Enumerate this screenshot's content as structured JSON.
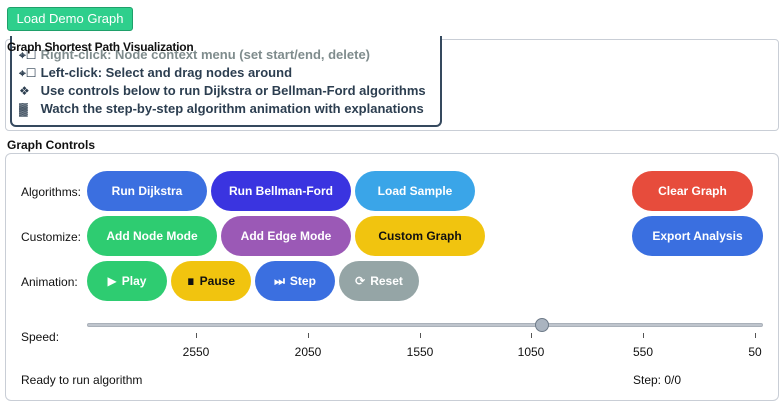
{
  "top": {
    "demo_button": "Load Demo Graph"
  },
  "visualization": {
    "title": "Graph Shortest Path Visualization",
    "instructions": [
      {
        "icon": "mouse-icon",
        "glyph": "⌖☐",
        "text": "Right-click: Node context menu (set start/end, delete)"
      },
      {
        "icon": "mouse-icon",
        "glyph": "⌖☐",
        "text": "Left-click: Select and drag nodes around"
      },
      {
        "icon": "gamepad-icon",
        "glyph": "❖",
        "text": "Use controls below to run Dijkstra or Bellman-Ford algorithms"
      },
      {
        "icon": "chart-icon",
        "glyph": "▓",
        "text": "Watch the step-by-step algorithm animation with explanations"
      }
    ]
  },
  "controls": {
    "title": "Graph Controls",
    "labels": {
      "algorithms": "Algorithms:",
      "customize": "Customize:",
      "animation": "Animation:",
      "speed": "Speed:"
    },
    "buttons": {
      "run_dijkstra": "Run Dijkstra",
      "run_bellman_ford": "Run Bellman-Ford",
      "load_sample": "Load Sample",
      "clear_graph": "Clear Graph",
      "add_node_mode": "Add Node Mode",
      "add_edge_mode": "Add Edge Mode",
      "custom_graph": "Custom Graph",
      "export_analysis": "Export Analysis",
      "play": "Play",
      "pause": "Pause",
      "step": "Step",
      "reset": "Reset"
    },
    "speed": {
      "ticks": [
        "2550",
        "2050",
        "1550",
        "1050",
        "550",
        "50"
      ],
      "value": 1050
    },
    "status": "Ready to run algorithm",
    "step_counter": "Step: 0/0"
  },
  "colors": {
    "demo_green": "#2ecf8c",
    "dijkstra_blue": "#3b6fe0",
    "bellman_indigo": "#3a34e0",
    "sample_sky": "#3aa5e8",
    "clear_red": "#e74c3c",
    "node_green": "#2ecc71",
    "edge_purple": "#9b59b6",
    "custom_yellow": "#f1c40f",
    "export_blue": "#3a6fe0",
    "reset_gray": "#95a5a6"
  }
}
